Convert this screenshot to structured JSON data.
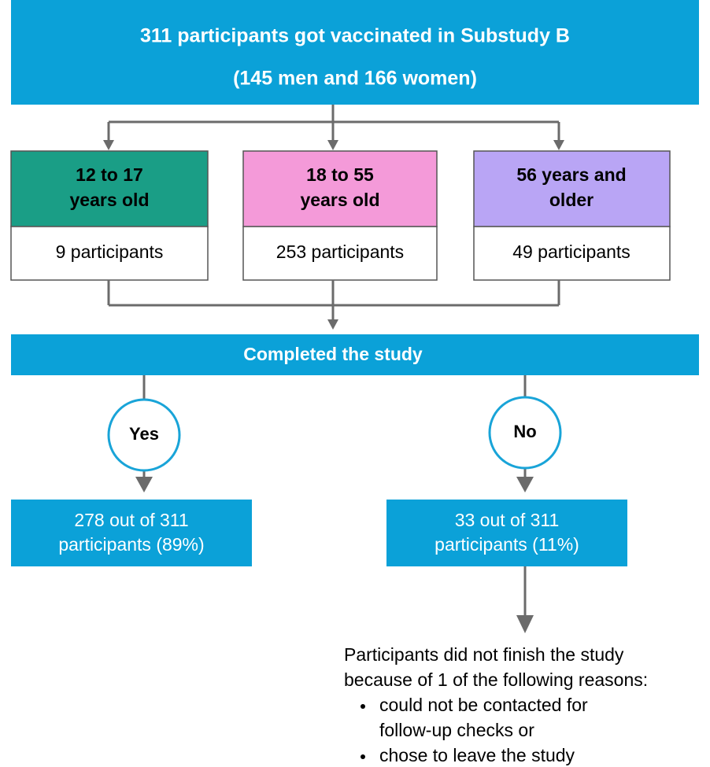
{
  "header": {
    "lines": [
      "311 participants got vaccinated in Substudy B",
      "(145 men and 166 women)"
    ]
  },
  "groups": [
    {
      "label": [
        "12 to 17",
        "years old"
      ],
      "count": "9 participants"
    },
    {
      "label": [
        "18 to 55",
        "years old"
      ],
      "count": "253 participants"
    },
    {
      "label": [
        "56 years and",
        "older"
      ],
      "count": "49 participants"
    }
  ],
  "completed": {
    "label": "Completed the study",
    "yes": {
      "label": "Yes",
      "result": [
        "278 out of 311",
        "participants (89%)"
      ]
    },
    "no": {
      "label": "No",
      "result": [
        "33 out of 311",
        "participants (11%)"
      ]
    }
  },
  "reasons": {
    "intro": [
      "Participants did not finish the study",
      "because of 1 of the following reasons:"
    ],
    "bullets": [
      [
        "could not be contacted for",
        "follow-up checks or"
      ],
      [
        "chose to leave the study"
      ]
    ]
  }
}
